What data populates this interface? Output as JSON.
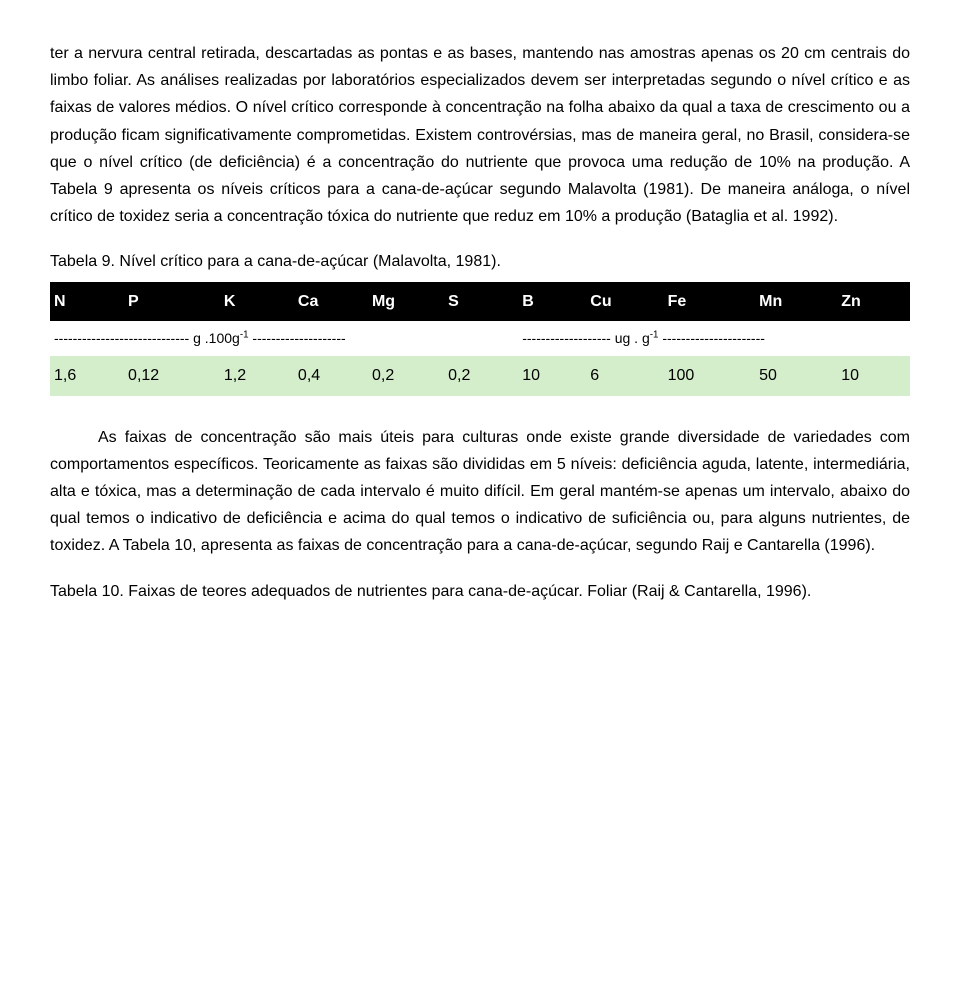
{
  "para1": "ter a nervura central retirada, descartadas as pontas e as bases, mantendo nas amostras apenas os 20 cm centrais do limbo foliar. As análises realizadas por laboratórios especializados devem ser interpretadas segundo o nível crítico e as faixas de valores médios. O nível crítico corresponde à concentração na folha abaixo da qual a taxa de crescimento ou a produção ficam significativamente comprometidas. Existem controvérsias, mas de maneira geral, no Brasil, considera-se que o nível crítico (de deficiência) é a concentração do nutriente que provoca uma redução de 10% na produção. A Tabela 9 apresenta os níveis críticos para a cana-de-açúcar segundo Malavolta (1981). De maneira análoga, o nível crítico de toxidez seria a concentração tóxica do nutriente que reduz em 10% a produção (Bataglia et al. 1992).",
  "table9": {
    "caption": "Tabela 9. Nível crítico para a cana-de-açúcar (Malavolta, 1981).",
    "columns": [
      "N",
      "P",
      "K",
      "Ca",
      "Mg",
      "S",
      "B",
      "Cu",
      "Fe",
      "Mn",
      "Zn"
    ],
    "unit_left_prefix": "----------------------------- g .100g",
    "unit_left_sup": "-1",
    "unit_left_suffix": " --------------------",
    "unit_right_prefix": "------------------- ug . g",
    "unit_right_sup": "-1",
    "unit_right_suffix": " ----------------------",
    "values": [
      "1,6",
      "0,12",
      "1,2",
      "0,4",
      "0,2",
      "0,2",
      "10",
      "6",
      "100",
      "50",
      "10"
    ],
    "header_bg": "#000000",
    "header_fg": "#ffffff",
    "value_row_bg": "#d4edcb"
  },
  "para2": "As faixas de concentração são mais úteis para culturas onde existe grande diversidade de variedades com comportamentos específicos. Teoricamente as faixas são divididas em 5 níveis: deficiência aguda, latente, intermediária, alta e tóxica, mas a determinação de cada intervalo é muito difícil. Em geral mantém-se apenas um intervalo, abaixo do qual temos o indicativo de deficiência e acima do qual temos o indicativo de suficiência ou, para alguns nutrientes, de toxidez. A Tabela 10, apresenta as faixas de concentração para a cana-de-açúcar, segundo Raij e Cantarella (1996).",
  "table10_caption": "Tabela 10. Faixas de teores adequados de nutrientes para cana-de-açúcar. Foliar (Raij & Cantarella, 1996)."
}
